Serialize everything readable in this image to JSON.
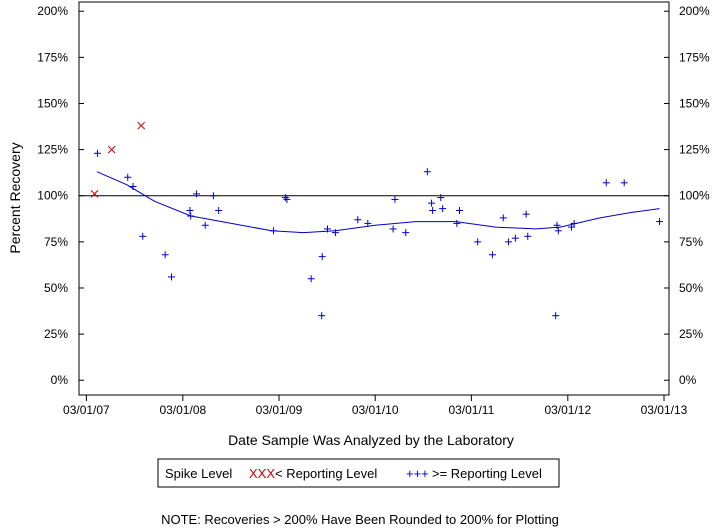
{
  "chart_data": {
    "type": "scatter",
    "xlabel": "Date Sample Was Analyzed by the Laboratory",
    "ylabel": "Percent Recovery",
    "x_ticks": [
      "03/01/07",
      "03/01/08",
      "03/01/09",
      "03/01/10",
      "03/01/11",
      "03/01/12",
      "03/01/13"
    ],
    "y_ticks": [
      "0%",
      "25%",
      "50%",
      "75%",
      "100%",
      "125%",
      "150%",
      "175%",
      "200%"
    ],
    "xlim": [
      "2007-02-01",
      "2013-03-20"
    ],
    "ylim": [
      -8,
      205
    ],
    "reference_line": 100,
    "legend": {
      "title": "Spike Level",
      "entries": [
        {
          "marker": "XXX",
          "label": "< Reporting Level"
        },
        {
          "marker": "+++",
          "label": ">= Reporting Level"
        }
      ]
    },
    "note": "NOTE: Recoveries > 200% Have Been Rounded to 200% for Plotting",
    "colors": {
      "below": "#cc0000",
      "above": "#0000cc",
      "trend": "#0000cc",
      "axis": "#000000"
    },
    "series": [
      {
        "label": "< Reporting Level",
        "marker": "x",
        "points": [
          [
            "2007-04-01",
            101
          ],
          [
            "2007-06-05",
            125
          ],
          [
            "2007-09-25",
            138
          ]
        ]
      },
      {
        "label": ">= Reporting Level",
        "marker": "+",
        "points": [
          [
            "2007-04-12",
            123
          ],
          [
            "2007-08-05",
            110
          ],
          [
            "2007-08-25",
            105
          ],
          [
            "2007-10-01",
            78
          ],
          [
            "2007-12-25",
            68
          ],
          [
            "2008-01-18",
            56
          ],
          [
            "2008-03-28",
            92
          ],
          [
            "2008-03-31",
            89
          ],
          [
            "2008-04-22",
            101
          ],
          [
            "2008-05-25",
            84
          ],
          [
            "2008-06-25",
            100
          ],
          [
            "2008-07-15",
            92
          ],
          [
            "2009-02-08",
            81
          ],
          [
            "2009-03-25",
            99
          ],
          [
            "2009-03-31",
            98
          ],
          [
            "2009-07-01",
            55
          ],
          [
            "2009-08-10",
            35
          ],
          [
            "2009-08-12",
            67
          ],
          [
            "2009-09-01",
            82
          ],
          [
            "2009-10-01",
            80
          ],
          [
            "2009-12-25",
            87
          ],
          [
            "2010-02-01",
            85
          ],
          [
            "2010-05-08",
            82
          ],
          [
            "2010-05-15",
            98
          ],
          [
            "2010-06-25",
            80
          ],
          [
            "2010-09-15",
            113
          ],
          [
            "2010-10-01",
            96
          ],
          [
            "2010-10-05",
            92
          ],
          [
            "2010-11-05",
            99
          ],
          [
            "2010-11-12",
            93
          ],
          [
            "2011-01-05",
            85
          ],
          [
            "2011-01-15",
            92
          ],
          [
            "2011-03-25",
            75
          ],
          [
            "2011-05-20",
            68
          ],
          [
            "2011-06-30",
            88
          ],
          [
            "2011-07-20",
            75
          ],
          [
            "2011-08-15",
            77
          ],
          [
            "2011-09-25",
            90
          ],
          [
            "2011-10-01",
            78
          ],
          [
            "2012-01-15",
            35
          ],
          [
            "2012-01-20",
            84
          ],
          [
            "2012-01-25",
            81
          ],
          [
            "2012-03-15",
            83
          ],
          [
            "2012-03-25",
            85
          ],
          [
            "2012-07-25",
            107
          ],
          [
            "2012-10-01",
            107
          ],
          [
            "2013-02-12",
            86
          ]
        ]
      }
    ],
    "trend": [
      [
        "2007-04-10",
        113
      ],
      [
        "2007-08-01",
        106
      ],
      [
        "2007-11-15",
        97
      ],
      [
        "2008-04-01",
        89
      ],
      [
        "2008-09-01",
        85
      ],
      [
        "2009-02-01",
        81
      ],
      [
        "2009-06-01",
        80
      ],
      [
        "2009-10-01",
        81
      ],
      [
        "2010-03-01",
        84
      ],
      [
        "2010-08-01",
        86
      ],
      [
        "2011-01-01",
        86
      ],
      [
        "2011-06-01",
        83
      ],
      [
        "2011-11-01",
        82
      ],
      [
        "2012-02-01",
        83
      ],
      [
        "2012-07-01",
        88
      ],
      [
        "2012-11-01",
        91
      ],
      [
        "2013-02-12",
        93
      ]
    ]
  }
}
